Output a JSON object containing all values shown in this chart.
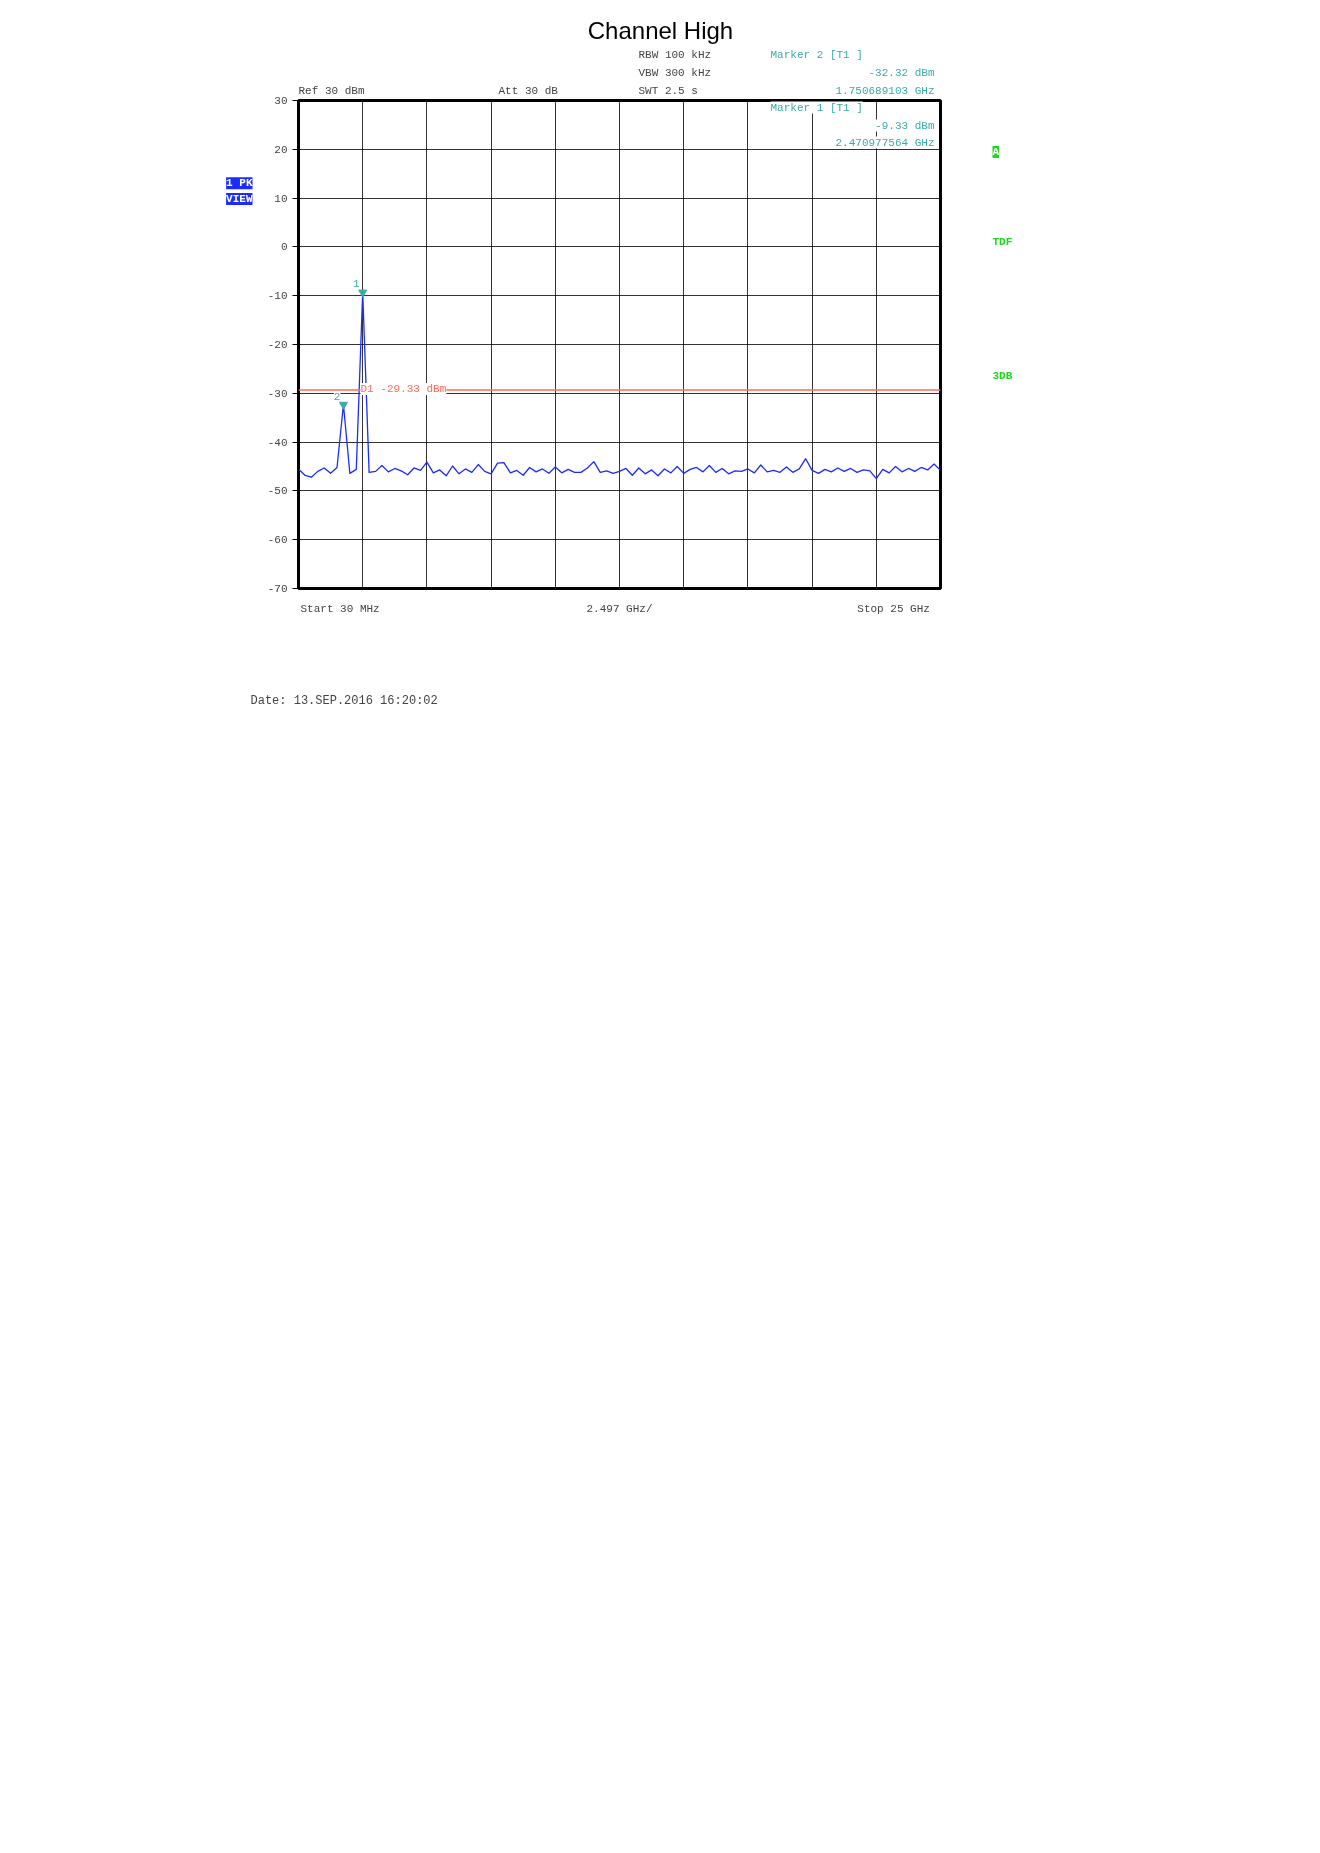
{
  "chart_data": {
    "type": "line",
    "title": "Channel High",
    "categories": [
      null,
      null,
      null,
      null,
      null,
      null,
      null,
      null,
      null,
      null,
      null,
      null,
      null,
      null,
      null,
      null,
      null,
      null,
      null,
      null,
      null,
      null,
      null,
      null,
      null,
      null,
      null,
      null,
      null,
      null,
      null,
      null,
      null,
      null,
      null,
      null,
      null,
      null,
      null,
      null,
      null,
      null,
      null,
      null,
      null,
      null,
      null,
      null,
      null,
      null,
      null,
      null,
      null,
      null,
      null,
      null,
      null,
      null,
      null,
      null,
      null,
      null,
      null,
      null,
      null,
      null,
      null,
      null,
      null,
      null,
      null,
      null,
      null,
      null,
      null,
      null,
      null,
      null,
      null,
      null,
      null,
      null,
      null,
      null,
      null,
      null,
      null,
      null,
      null,
      null,
      null,
      null,
      null,
      null,
      null,
      null,
      null,
      null,
      null,
      null,
      null
    ],
    "ylim": [
      -70,
      30
    ],
    "yticks": [
      -70,
      -60,
      -50,
      -40,
      -30,
      -20,
      -10,
      0,
      10,
      20,
      30
    ],
    "grid": true,
    "ref_lines": [
      {
        "axis": "y",
        "value": -29.33,
        "label": "D1 -29.33 dBm",
        "color": "#ff6a5a"
      }
    ],
    "annotations": [
      "Ref  30 dBm",
      "Att  30 dB",
      "RBW  100 kHz",
      "VBW  300 kHz",
      "SWT  2.5 s",
      "Marker 2 [T1 ]",
      "-32.32 dBm",
      "1.750689103 GHz",
      "Marker 1 [T1 ]",
      "-9.33 dBm",
      "2.470977564 GHz",
      "1 PK",
      "VIEW",
      "A",
      "TDF",
      "3DB",
      "Date: 13.SEP.2016  16:20:02",
      "2.497 GHz/",
      "Start  30 MHz",
      "Stop  25 GHz",
      {
        "text": "1",
        "y": -9.33
      },
      {
        "text": "2",
        "y": -32.32
      }
    ],
    "series": [
      {
        "color": "#1a2cff",
        "values": [
          -45.5,
          -46.8,
          -47.2,
          -46.0,
          -45.3,
          -46.4,
          -45.2,
          -32.3,
          -46.4,
          -45.6,
          -9.3,
          -46.2,
          -46.0,
          -44.8,
          -46.1,
          -45.4,
          -45.9,
          -46.7,
          -45.3,
          -45.8,
          -44.1,
          -46.3,
          -45.7,
          -46.9,
          -44.9,
          -46.5,
          -45.5,
          -46.2,
          -44.6,
          -46.0,
          -46.5,
          -44.3,
          -44.2,
          -46.3,
          -45.8,
          -46.8,
          -45.2,
          -46.1,
          -45.5,
          -46.4,
          -45.1,
          -46.3,
          -45.6,
          -46.2,
          -46.2,
          -45.3,
          -44.0,
          -46.2,
          -45.9,
          -46.4,
          -46.0,
          -45.4,
          -46.8,
          -45.3,
          -46.5,
          -45.7,
          -46.9,
          -45.5,
          -46.3,
          -45.0,
          -46.4,
          -45.6,
          -45.2,
          -46.1,
          -44.8,
          -46.2,
          -45.4,
          -46.5,
          -45.9,
          -46.0,
          -45.5,
          -46.3,
          -44.7,
          -46.1,
          -45.8,
          -46.2,
          -45.1,
          -46.2,
          -45.5,
          -43.4,
          -45.8,
          -46.4,
          -45.6,
          -46.1,
          -45.3,
          -46.0,
          -45.4,
          -46.2,
          -45.7,
          -45.9,
          -47.5,
          -45.6,
          -46.3,
          -45.0,
          -46.1,
          -45.4,
          -46.0,
          -45.2,
          -45.7,
          -44.5,
          -45.8
        ]
      }
    ]
  }
}
